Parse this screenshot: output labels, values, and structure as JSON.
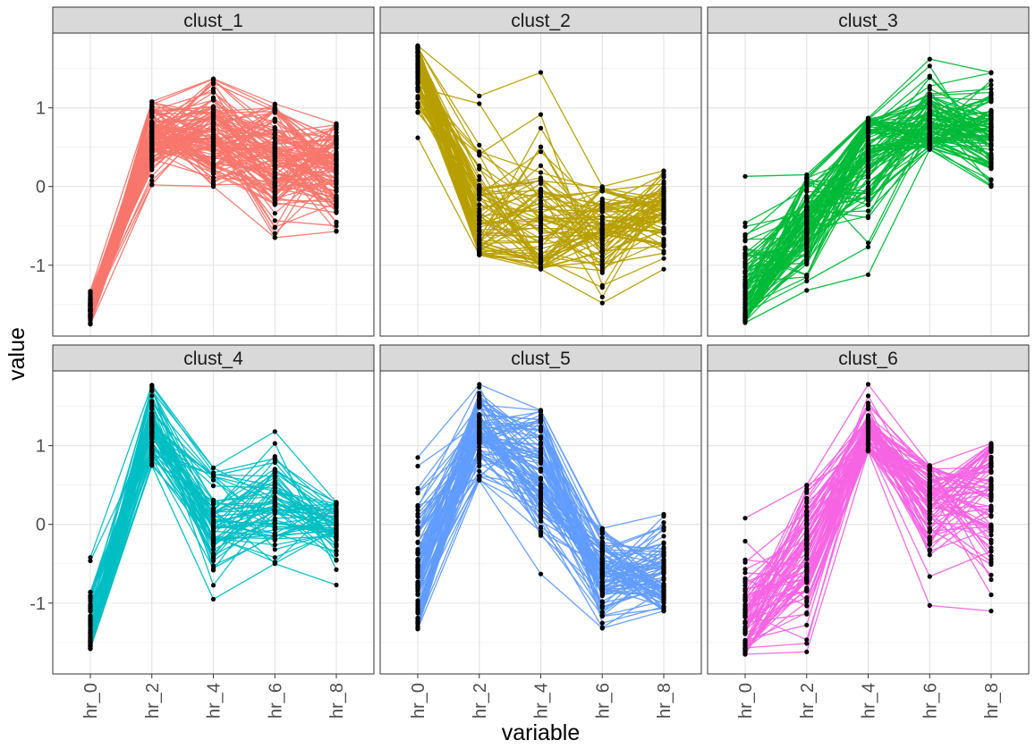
{
  "chart_data": {
    "type": "line",
    "xlabel": "variable",
    "ylabel": "value",
    "x_categories": [
      "hr_0",
      "hr_2",
      "hr_4",
      "hr_6",
      "hr_8"
    ],
    "y_ticks": [
      -1,
      0,
      1
    ],
    "y_tick_labels": [
      "-1",
      "0",
      "1"
    ],
    "ylim": [
      -1.9,
      1.95
    ],
    "grid": true,
    "legend": "none",
    "point_color": "#000000",
    "panels": [
      {
        "name": "clust_1",
        "color": "#F8766D",
        "line_count": 120,
        "mean_profile": [
          -1.55,
          0.65,
          0.6,
          0.35,
          0.2
        ],
        "range_min": [
          -1.75,
          0.02,
          0.0,
          -0.65,
          -0.57
        ],
        "range_max": [
          -1.33,
          1.08,
          1.37,
          1.05,
          0.8
        ]
      },
      {
        "name": "clust_2",
        "color": "#B79F00",
        "line_count": 80,
        "mean_profile": [
          1.5,
          -0.35,
          -0.5,
          -0.55,
          -0.35
        ],
        "range_min": [
          0.62,
          -0.87,
          -1.05,
          -1.48,
          -1.05
        ],
        "range_max": [
          1.79,
          1.15,
          1.45,
          0.0,
          0.2
        ]
      },
      {
        "name": "clust_3",
        "color": "#00BA38",
        "line_count": 100,
        "mean_profile": [
          -1.45,
          -0.45,
          0.35,
          0.85,
          0.7
        ],
        "range_min": [
          -1.73,
          -1.32,
          -1.12,
          0.47,
          0.0
        ],
        "range_max": [
          0.13,
          0.15,
          0.87,
          1.62,
          1.45
        ]
      },
      {
        "name": "clust_4",
        "color": "#00BFC4",
        "line_count": 70,
        "mean_profile": [
          -1.35,
          1.2,
          0.1,
          0.1,
          0.0
        ],
        "range_min": [
          -1.58,
          0.75,
          -0.95,
          -0.5,
          -0.77
        ],
        "range_max": [
          -0.42,
          1.77,
          0.72,
          1.18,
          0.28
        ]
      },
      {
        "name": "clust_5",
        "color": "#619CFF",
        "line_count": 90,
        "mean_profile": [
          -0.65,
          1.2,
          0.7,
          -0.6,
          -0.65
        ],
        "range_min": [
          -1.33,
          0.56,
          -0.63,
          -1.32,
          -1.1
        ],
        "range_max": [
          0.85,
          1.78,
          1.45,
          -0.05,
          0.13
        ]
      },
      {
        "name": "clust_6",
        "color": "#F564E3",
        "line_count": 80,
        "mean_profile": [
          -1.3,
          -0.35,
          1.2,
          0.3,
          0.35
        ],
        "range_min": [
          -1.65,
          -1.62,
          0.93,
          -1.03,
          -1.1
        ],
        "range_max": [
          0.08,
          0.5,
          1.78,
          0.75,
          1.03
        ]
      }
    ]
  }
}
